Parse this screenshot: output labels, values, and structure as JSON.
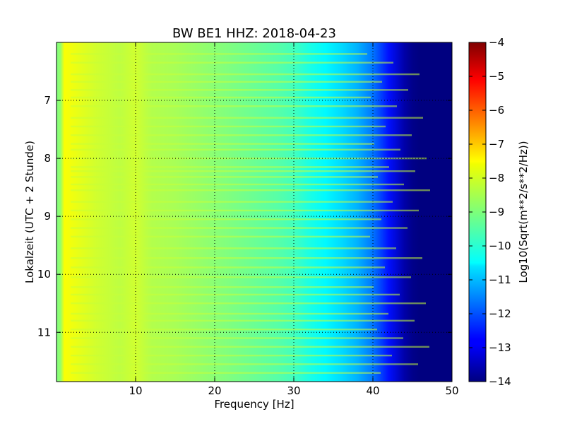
{
  "chart_data": {
    "type": "heatmap",
    "title": "BW BE1 HHZ: 2018-04-23",
    "xlabel": "Frequency [Hz]",
    "ylabel": "Lokalzeit (UTC + 2 Stunde)",
    "xlim": [
      0,
      50
    ],
    "ylim": [
      6.0,
      11.85
    ],
    "y_inverted": true,
    "x_ticks": [
      10,
      20,
      30,
      40,
      50
    ],
    "x_tick_labels": [
      "10",
      "20",
      "30",
      "40",
      "50"
    ],
    "y_ticks": [
      7,
      8,
      9,
      10,
      11
    ],
    "y_tick_labels": [
      "7",
      "8",
      "9",
      "10",
      "11"
    ],
    "grid": true,
    "colormap": "jet",
    "colorbar": {
      "label": "Log10(Sqrt(m**2/s**2/Hz))",
      "range": [
        -14,
        -4
      ],
      "ticks": [
        -4,
        -5,
        -6,
        -7,
        -8,
        -9,
        -10,
        -11,
        -12,
        -13,
        -14
      ],
      "tick_labels": [
        "−4",
        "−5",
        "−6",
        "−7",
        "−8",
        "−9",
        "−10",
        "−11",
        "−12",
        "−13",
        "−14"
      ]
    },
    "spectrum_profile": {
      "frequency_hz": [
        0.5,
        1,
        2,
        3,
        5,
        8,
        10,
        12,
        15,
        20,
        25,
        28,
        30,
        32,
        34,
        36,
        38,
        40,
        42,
        44,
        45,
        46,
        50
      ],
      "value": [
        -8.8,
        -7.8,
        -7.9,
        -8.0,
        -8.2,
        -8.4,
        -8.2,
        -8.5,
        -8.6,
        -8.9,
        -9.2,
        -9.4,
        -9.6,
        -10.0,
        -10.3,
        -10.6,
        -11.0,
        -11.6,
        -12.6,
        -13.6,
        -13.9,
        -14.0,
        -14.0
      ]
    },
    "band_lines_hours": [
      6.2,
      6.35,
      6.55,
      6.68,
      6.82,
      6.95,
      7.1,
      7.3,
      7.45,
      7.6,
      7.75,
      7.85,
      8.0,
      8.15,
      8.22,
      8.32,
      8.45,
      8.55,
      8.75,
      8.9,
      9.05,
      9.2,
      9.35,
      9.55,
      9.72,
      9.88,
      10.05,
      10.22,
      10.35,
      10.5,
      10.68,
      10.8,
      10.95,
      11.1,
      11.25,
      11.4,
      11.55,
      11.7
    ]
  }
}
